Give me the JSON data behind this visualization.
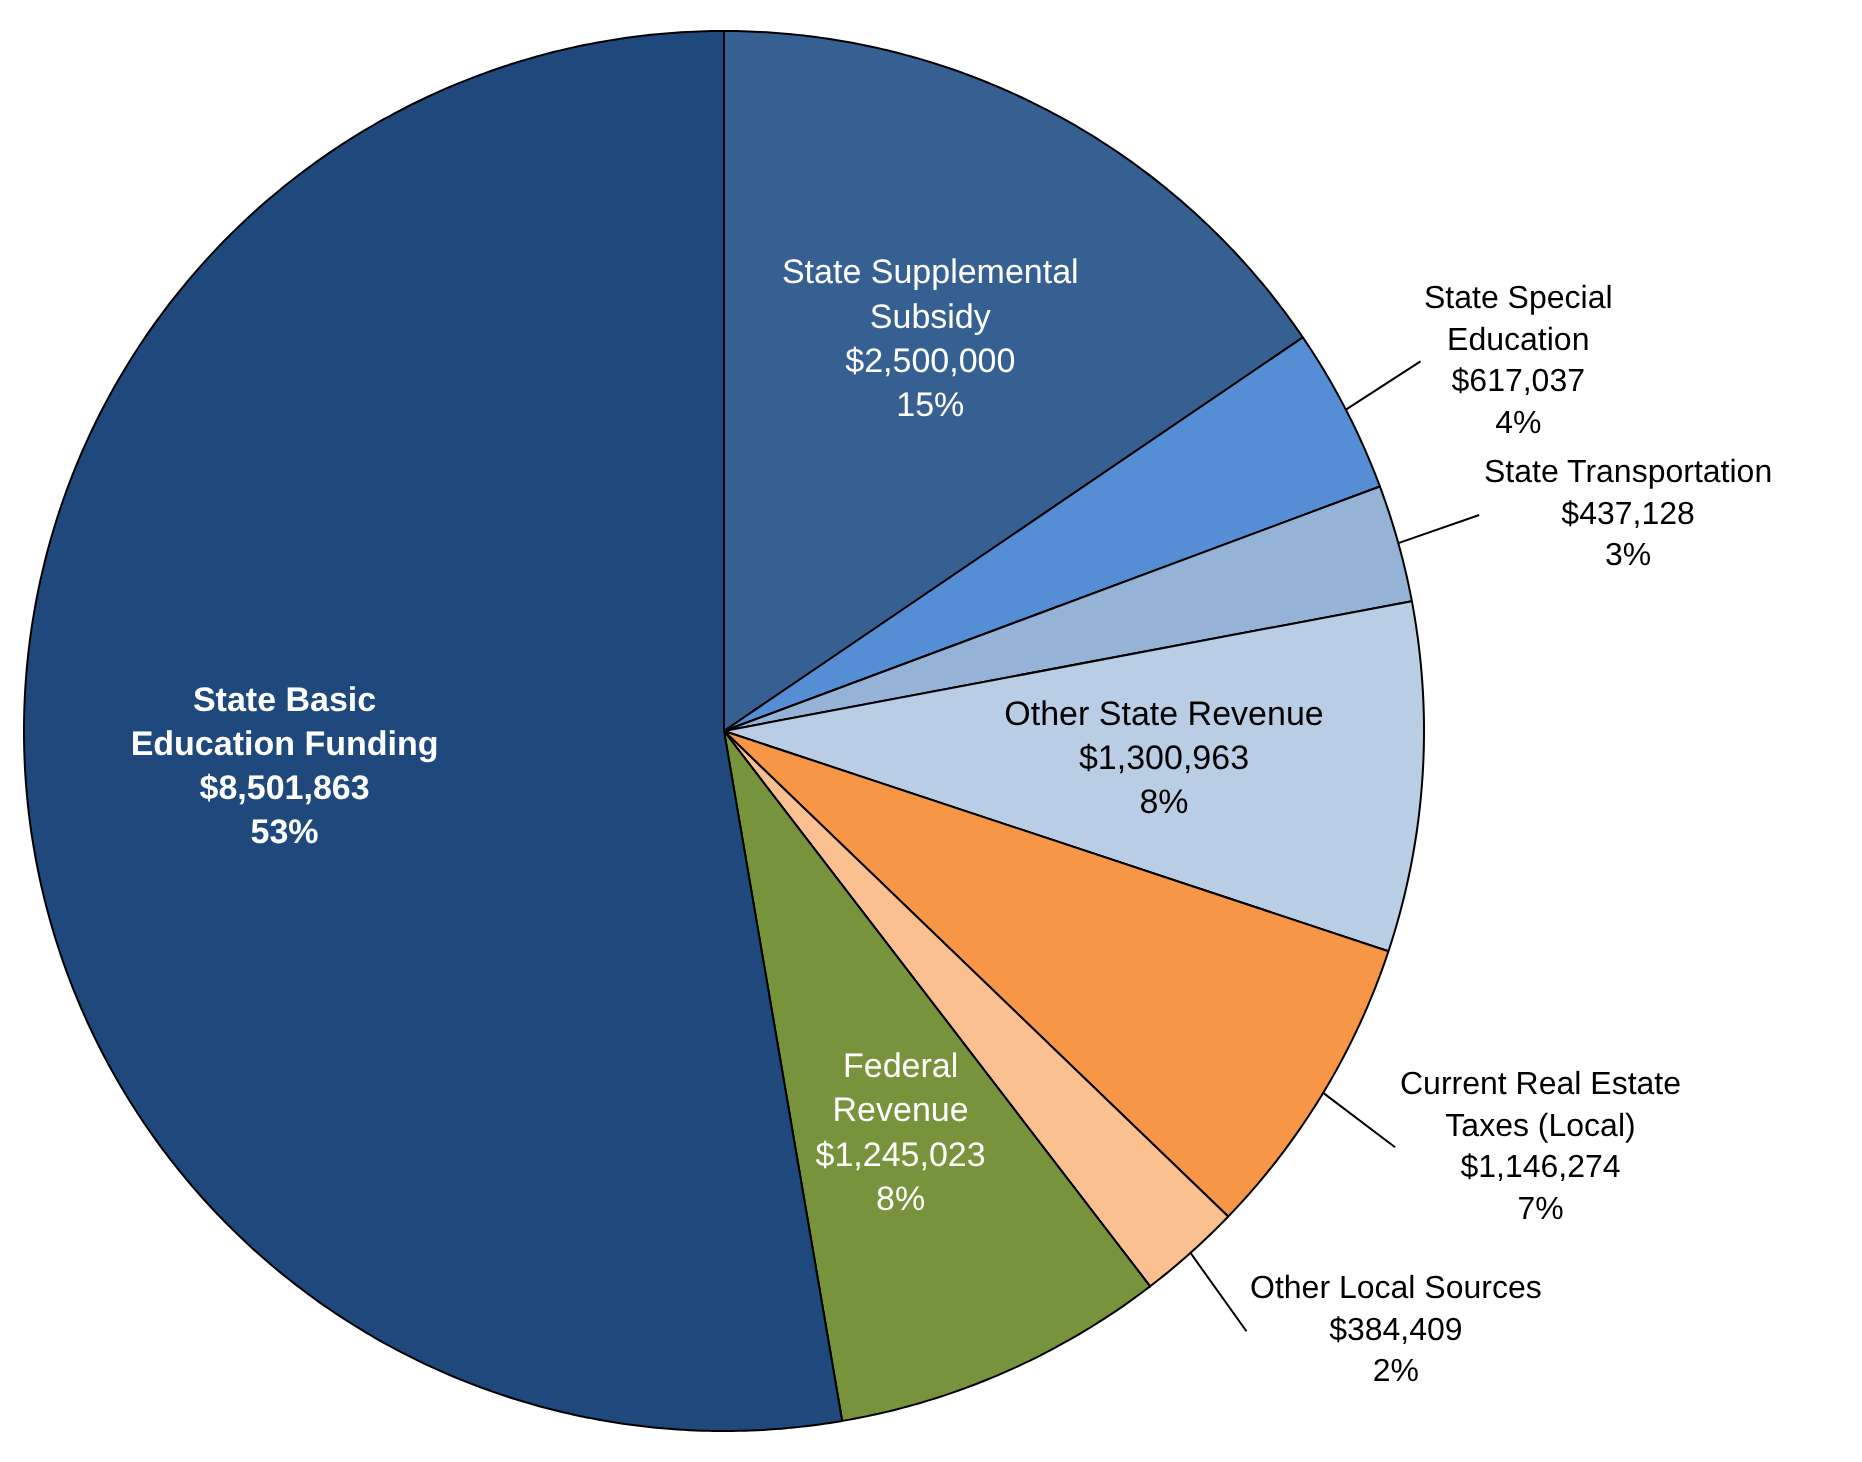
{
  "chart_data": {
    "type": "pie",
    "categories": [
      "State Supplemental\nSubsidy",
      "State Special\nEducation",
      "State Transportation",
      "Other State Revenue",
      "Current Real Estate\nTaxes (Local)",
      "Other Local Sources",
      "Federal\nRevenue",
      "State Basic\nEducation Funding"
    ],
    "values": [
      2500000,
      617037,
      437128,
      1300963,
      1146274,
      384409,
      1245023,
      8501863
    ],
    "value_labels": [
      "$2,500,000\n15%",
      "$617,037\n4%",
      "$437,128\n3%",
      "$1,300,963\n8%",
      "$1,146,274\n7%",
      "$384,409\n2%",
      "$1,245,023\n8%",
      "$8,501,863\n53%"
    ],
    "colors": [
      "#376092",
      "#558ed5",
      "#95b3d7",
      "#b9cde5",
      "#f79646",
      "#fac090",
      "#77933c",
      "#1f497d"
    ],
    "legend": false
  }
}
